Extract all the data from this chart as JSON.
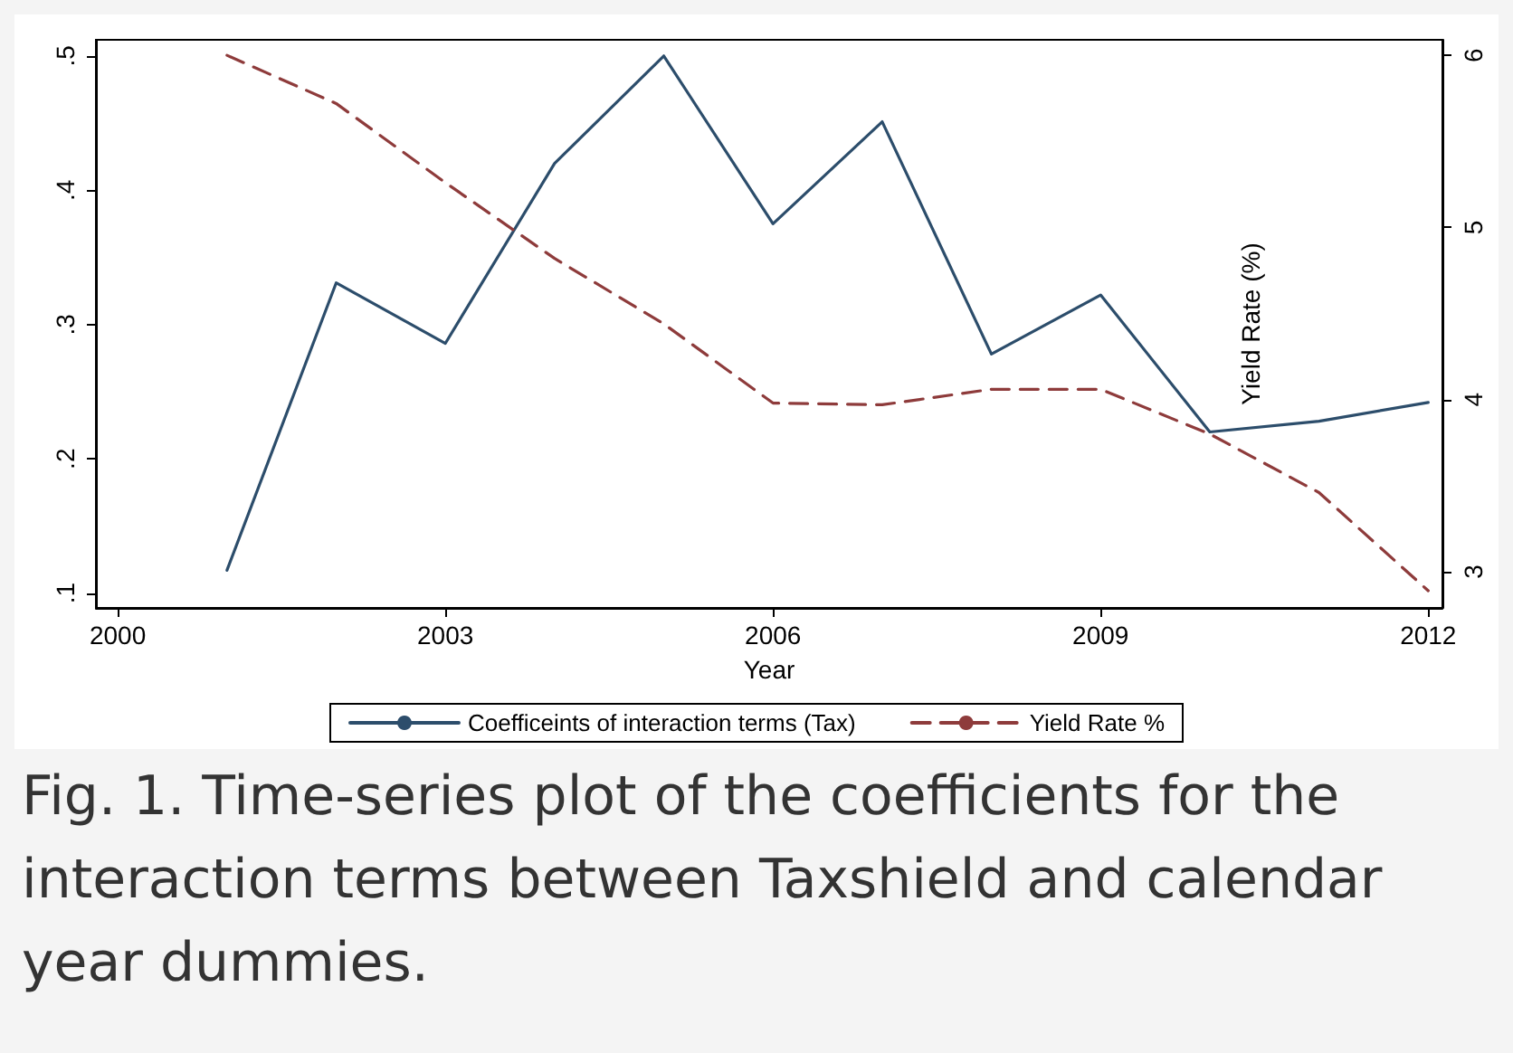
{
  "chart_data": {
    "type": "line",
    "xlabel": "Year",
    "y2label": "Yield Rate (%)",
    "annotations": [
      "Fig. 1. Time-series plot of the coefficients for the interaction terms between Taxshield and calendar year dummies."
    ],
    "x": [
      2001,
      2002,
      2003,
      2004,
      2005,
      2006,
      2007,
      2008,
      2009,
      2010,
      2011,
      2012
    ],
    "series": [
      {
        "name": "Coefficeints of interaction terms (Tax)",
        "color": "#2c4d6b",
        "line_style": "solid",
        "values": [
          0.117,
          0.331,
          0.286,
          0.42,
          0.5,
          0.375,
          0.451,
          0.278,
          0.322,
          0.22,
          0.228,
          0.242
        ]
      },
      {
        "name": "Yield Rate %",
        "color": "#8e3b3b",
        "line_style": "dashed",
        "axis": "y2",
        "values": [
          6.0,
          5.72,
          5.26,
          4.82,
          4.44,
          3.98,
          3.97,
          4.06,
          4.06,
          3.8,
          3.46,
          2.89
        ]
      }
    ],
    "xlim": [
      1999.8,
      2012.13
    ],
    "xticks": [
      2000,
      2003,
      2006,
      2009,
      2012
    ],
    "ylim": [
      0.089,
      0.512
    ],
    "yticks": [
      {
        "value": 0.1,
        "label": ".1"
      },
      {
        "value": 0.2,
        "label": ".2"
      },
      {
        "value": 0.3,
        "label": ".3"
      },
      {
        "value": 0.4,
        "label": ".4"
      },
      {
        "value": 0.5,
        "label": ".5"
      }
    ],
    "y2lim": [
      2.79,
      6.09
    ],
    "y2ticks": [
      3,
      4,
      5,
      6
    ],
    "grid": false,
    "legend": "bottom",
    "marker": "none"
  }
}
